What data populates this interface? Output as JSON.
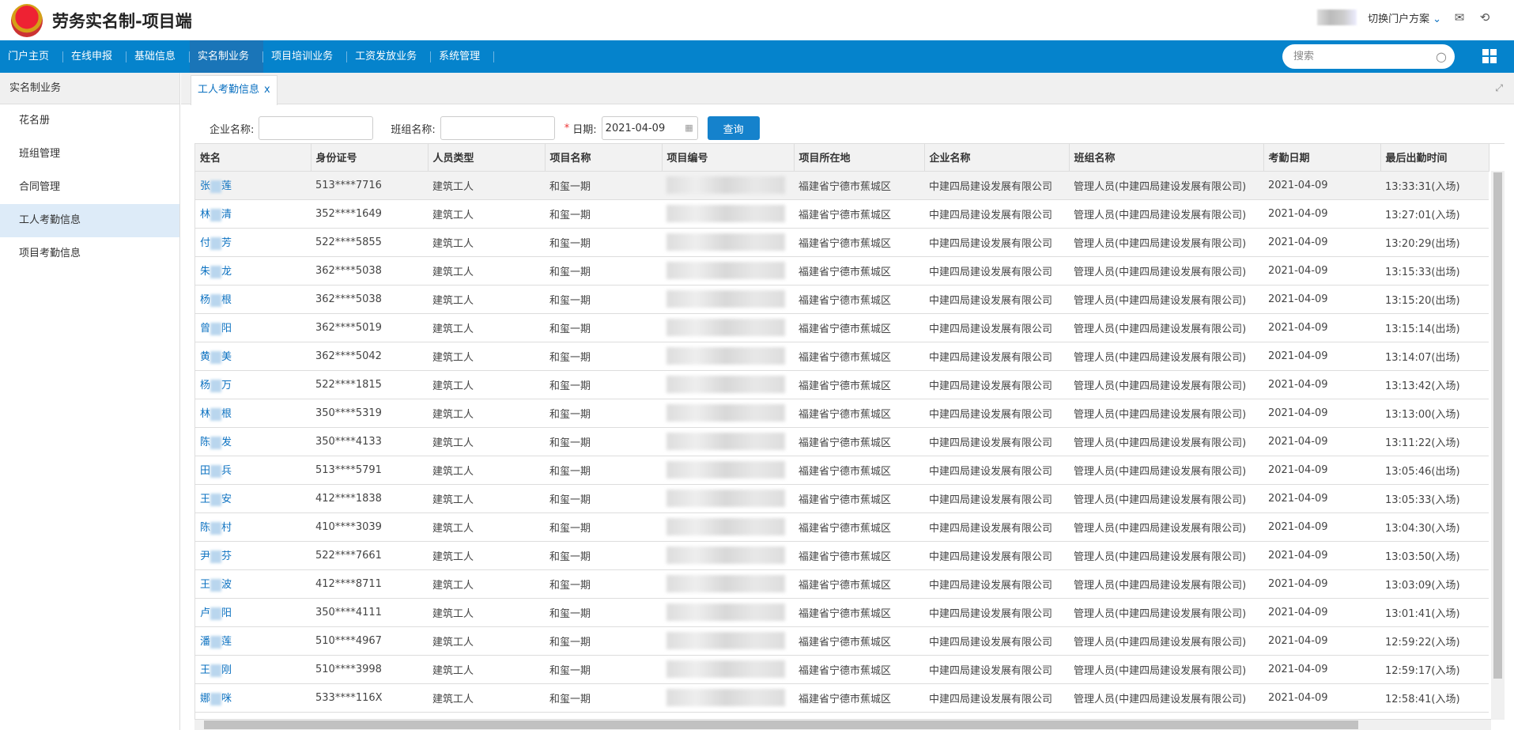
{
  "header": {
    "title": "劳务实名制-项目端",
    "switch_label": "切换门户方案"
  },
  "nav": {
    "items": [
      "门户主页",
      "在线申报",
      "基础信息",
      "实名制业务",
      "项目培训业务",
      "工资发放业务",
      "系统管理"
    ],
    "active": 3,
    "search_placeholder": "搜索"
  },
  "sidebar": {
    "title": "实名制业务",
    "items": [
      "花名册",
      "班组管理",
      "合同管理",
      "工人考勤信息",
      "项目考勤信息"
    ],
    "active": 3
  },
  "tab": {
    "label": "工人考勤信息",
    "close": "x"
  },
  "filters": {
    "company_label": "企业名称:",
    "team_label": "班组名称:",
    "date_required": "*",
    "date_label": "日期:",
    "date_value": "2021-04-09",
    "query_label": "查询"
  },
  "table": {
    "columns": [
      "姓名",
      "身份证号",
      "人员类型",
      "项目名称",
      "项目编号",
      "项目所在地",
      "企业名称",
      "班组名称",
      "考勤日期",
      "最后出勤时间"
    ],
    "rows": [
      {
        "n1": "张",
        "n2": "莲",
        "id": "513****7716",
        "time": "13:33:31(入场)"
      },
      {
        "n1": "林",
        "n2": "清",
        "id": "352****1649",
        "time": "13:27:01(入场)"
      },
      {
        "n1": "付",
        "n2": "芳",
        "id": "522****5855",
        "time": "13:20:29(出场)"
      },
      {
        "n1": "朱",
        "n2": "龙",
        "id": "362****5038",
        "time": "13:15:33(出场)"
      },
      {
        "n1": "杨",
        "n2": "根",
        "id": "362****5038",
        "time": "13:15:20(出场)"
      },
      {
        "n1": "曾",
        "n2": "阳",
        "id": "362****5019",
        "time": "13:15:14(出场)"
      },
      {
        "n1": "黄",
        "n2": "美",
        "id": "362****5042",
        "time": "13:14:07(出场)"
      },
      {
        "n1": "杨",
        "n2": "万",
        "id": "522****1815",
        "time": "13:13:42(入场)"
      },
      {
        "n1": "林",
        "n2": "根",
        "id": "350****5319",
        "time": "13:13:00(入场)"
      },
      {
        "n1": "陈",
        "n2": "发",
        "id": "350****4133",
        "time": "13:11:22(入场)"
      },
      {
        "n1": "田",
        "n2": "兵",
        "id": "513****5791",
        "time": "13:05:46(出场)"
      },
      {
        "n1": "王",
        "n2": "安",
        "id": "412****1838",
        "time": "13:05:33(入场)"
      },
      {
        "n1": "陈",
        "n2": "村",
        "id": "410****3039",
        "time": "13:04:30(入场)"
      },
      {
        "n1": "尹",
        "n2": "芬",
        "id": "522****7661",
        "time": "13:03:50(入场)"
      },
      {
        "n1": "王",
        "n2": "波",
        "id": "412****8711",
        "time": "13:03:09(入场)"
      },
      {
        "n1": "卢",
        "n2": "阳",
        "id": "350****4111",
        "time": "13:01:41(入场)"
      },
      {
        "n1": "潘",
        "n2": "莲",
        "id": "510****4967",
        "time": "12:59:22(入场)"
      },
      {
        "n1": "王",
        "n2": "刚",
        "id": "510****3998",
        "time": "12:59:17(入场)"
      },
      {
        "n1": "娜",
        "n2": "咪",
        "id": "533****116X",
        "time": "12:58:41(入场)"
      }
    ],
    "common": {
      "type": "建筑工人",
      "project": "和玺一期",
      "location": "福建省宁德市蕉城区",
      "company": "中建四局建设发展有限公司",
      "team": "管理人员(中建四局建设发展有限公司)",
      "date": "2021-04-09"
    }
  }
}
